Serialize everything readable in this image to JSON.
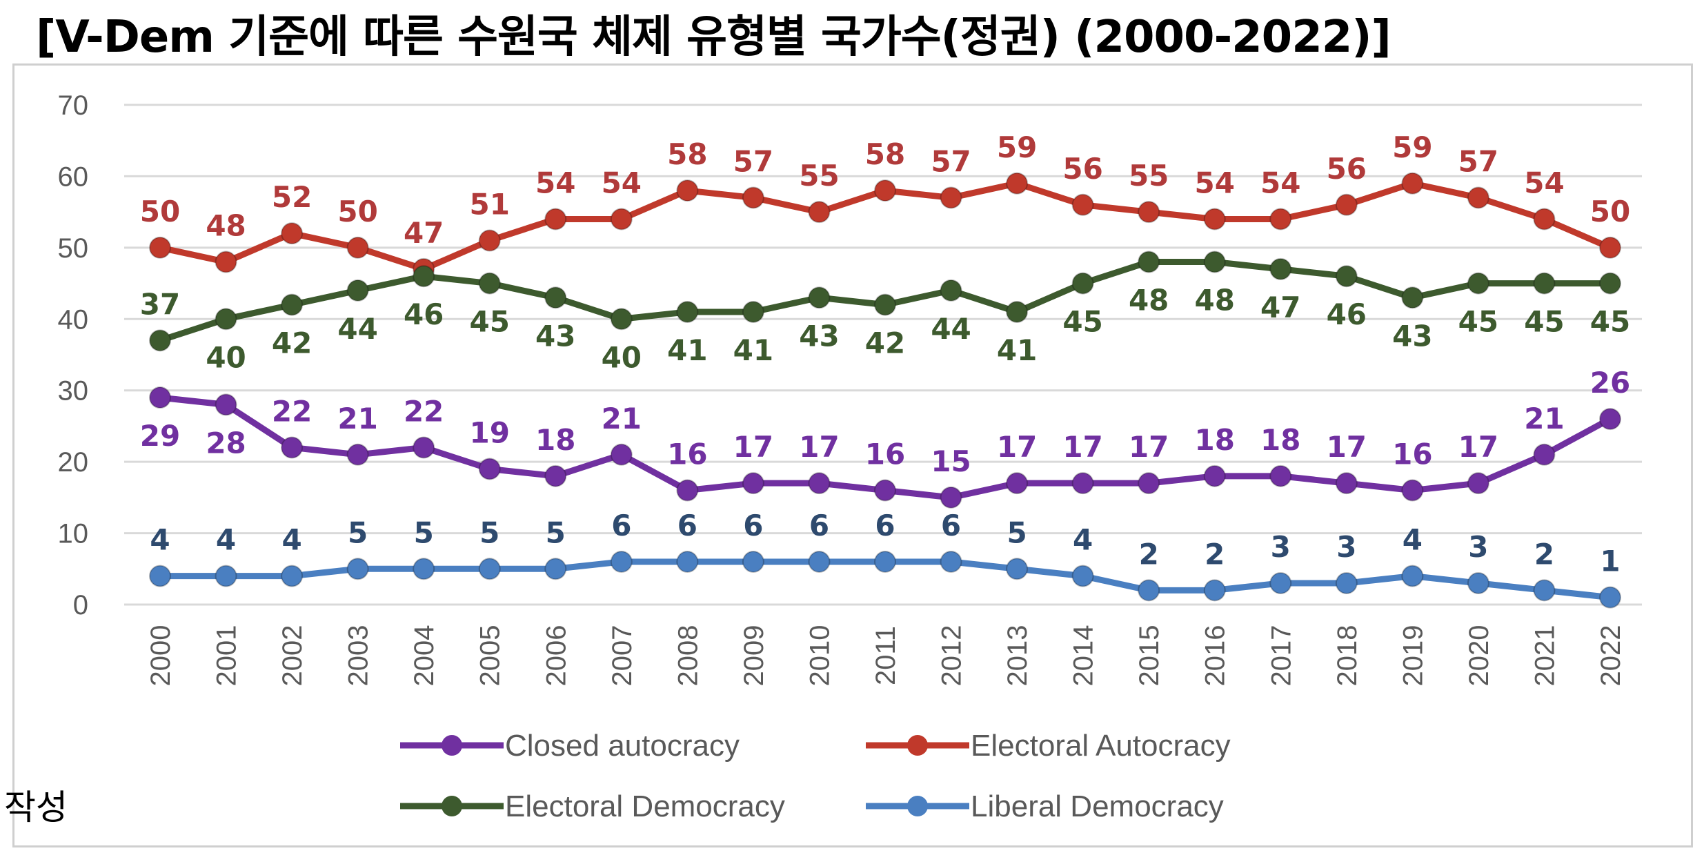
{
  "title": "[V-Dem 기준에 따른 수원국 체제 유형별 국가수(정권) (2000-2022)]",
  "source_note": "작성",
  "chart_data": {
    "type": "line",
    "title": "[V-Dem 기준에 따른 수원국 체제 유형별 국가수(정권) (2000-2022)]",
    "xlabel": "",
    "ylabel": "",
    "ylim": [
      0,
      70
    ],
    "yticks": [
      "0",
      "10",
      "20",
      "30",
      "40",
      "50",
      "60",
      "70"
    ],
    "grid": "horizontal",
    "legend_position": "bottom",
    "categories": [
      "2000",
      "2001",
      "2002",
      "2003",
      "2004",
      "2005",
      "2006",
      "2007",
      "2008",
      "2009",
      "2010",
      "2011",
      "2012",
      "2013",
      "2014",
      "2015",
      "2016",
      "2017",
      "2018",
      "2019",
      "2020",
      "2021",
      "2022"
    ],
    "series": [
      {
        "name": "Closed autocracy",
        "color": "#7030a0",
        "label_position": "below-start",
        "values": [
          29,
          28,
          22,
          21,
          22,
          19,
          18,
          21,
          16,
          17,
          17,
          16,
          15,
          17,
          17,
          17,
          18,
          18,
          17,
          16,
          17,
          21,
          26
        ]
      },
      {
        "name": "Electoral Autocracy",
        "color": "#c0392b",
        "label_color": "#b03a3a",
        "label_position": "above",
        "values": [
          50,
          48,
          52,
          50,
          47,
          51,
          54,
          54,
          58,
          57,
          55,
          58,
          57,
          59,
          56,
          55,
          54,
          54,
          56,
          59,
          57,
          54,
          50
        ]
      },
      {
        "name": "Electoral Democracy",
        "color": "#3d5a2e",
        "label_position": "below-start",
        "values": [
          37,
          40,
          42,
          44,
          46,
          45,
          43,
          40,
          41,
          41,
          43,
          42,
          44,
          41,
          45,
          48,
          48,
          47,
          46,
          43,
          45,
          45,
          45
        ]
      },
      {
        "name": "Liberal Democracy",
        "color": "#4a7fc1",
        "label_color": "#2e4a6e",
        "label_position": "above",
        "values": [
          4,
          4,
          4,
          5,
          5,
          5,
          5,
          6,
          6,
          6,
          6,
          6,
          6,
          5,
          4,
          2,
          2,
          3,
          3,
          4,
          3,
          2,
          1
        ]
      }
    ],
    "label_offsets": {
      "Closed autocracy": [
        [
          "below",
          29
        ],
        [
          "below",
          28
        ],
        [
          "above",
          22
        ],
        [
          "above",
          21
        ],
        [
          "above",
          22
        ],
        [
          "above",
          19
        ],
        [
          "above",
          18
        ],
        [
          "above",
          21
        ],
        [
          "above",
          16
        ],
        [
          "above",
          17
        ],
        [
          "above",
          17
        ],
        [
          "above",
          16
        ],
        [
          "above",
          15
        ],
        [
          "above",
          17
        ],
        [
          "above",
          17
        ],
        [
          "above",
          17
        ],
        [
          "above",
          18
        ],
        [
          "above",
          18
        ],
        [
          "above",
          17
        ],
        [
          "above",
          16
        ],
        [
          "above",
          17
        ],
        [
          "above",
          21
        ],
        [
          "above",
          26
        ]
      ],
      "Electoral Democracy": [
        [
          "above",
          37
        ],
        [
          "below",
          40
        ],
        [
          "below",
          42
        ],
        [
          "below",
          44
        ],
        [
          "below",
          46
        ],
        [
          "below",
          45
        ],
        [
          "below",
          43
        ],
        [
          "below",
          40
        ],
        [
          "below",
          41
        ],
        [
          "below",
          41
        ],
        [
          "below",
          43
        ],
        [
          "below",
          42
        ],
        [
          "below",
          44
        ],
        [
          "below",
          41
        ],
        [
          "below",
          45
        ],
        [
          "below",
          48
        ],
        [
          "below",
          48
        ],
        [
          "below",
          47
        ],
        [
          "below",
          46
        ],
        [
          "below",
          43
        ],
        [
          "below",
          45
        ],
        [
          "below",
          45
        ],
        [
          "below",
          45
        ]
      ]
    }
  }
}
